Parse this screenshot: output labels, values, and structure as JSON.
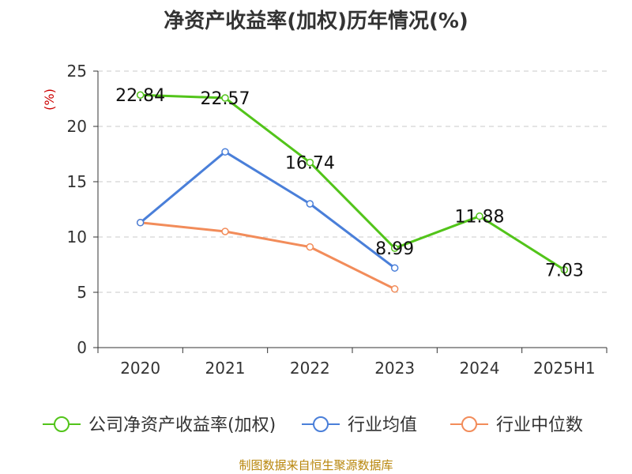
{
  "chart_data": {
    "type": "line",
    "title": "净资产收益率(加权)历年情况(%)",
    "ylabel": "(%)",
    "ylim": [
      0,
      25
    ],
    "yticks": [
      0,
      5,
      10,
      15,
      20,
      25
    ],
    "categories": [
      "2020",
      "2021",
      "2022",
      "2023",
      "2024",
      "2025H1"
    ],
    "grid": true,
    "legend_position": "bottom",
    "series": [
      {
        "name": "公司净资产收益率(加权)",
        "color": "#52c41a",
        "values": [
          22.84,
          22.57,
          16.74,
          8.99,
          11.88,
          7.03
        ],
        "labels": [
          "22.84",
          "22.57",
          "16.74",
          "8.99",
          "11.88",
          "7.03"
        ]
      },
      {
        "name": "行业均值",
        "color": "#4a7fd9",
        "values": [
          11.3,
          17.7,
          13.0,
          7.2,
          null,
          null
        ]
      },
      {
        "name": "行业中位数",
        "color": "#f28c5a",
        "values": [
          11.3,
          10.5,
          9.1,
          5.3,
          null,
          null
        ]
      }
    ]
  },
  "footer": "制图数据来自恒生聚源数据库"
}
